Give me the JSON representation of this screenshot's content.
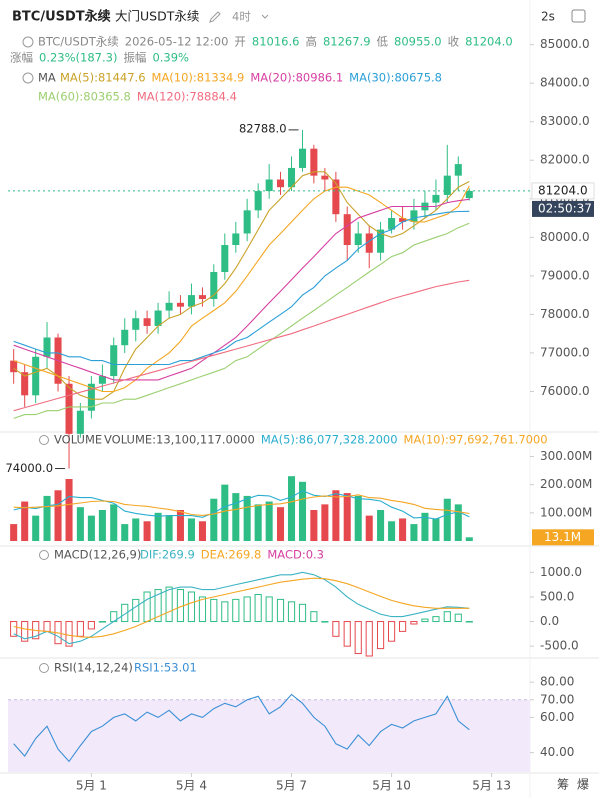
{
  "header": {
    "symbol": "BTC/USDT永续",
    "subtitle": "大门USDT永续",
    "interval": "4时",
    "refresh": "2s",
    "info_line1": [
      [
        "BTC/USDT永续",
        "2026-05-12 12:00"
      ],
      [
        "开",
        "81016.6"
      ],
      [
        "高",
        "81267.9"
      ],
      [
        "低",
        "80955.0"
      ],
      [
        "收",
        "81204.0"
      ]
    ],
    "info_line2": [
      [
        "涨幅",
        "0.23%(187.3)"
      ],
      [
        "振幅",
        "0.39%"
      ]
    ],
    "side_buttons": [
      "筹",
      "爆"
    ]
  },
  "chart_data": [
    {
      "type": "candlestick",
      "title": "MA",
      "up_color": "#2ebd85",
      "down_color": "#e5484d",
      "x": [
        -1.33,
        -1,
        -0.67,
        -0.33,
        0,
        0.33,
        0.67,
        1,
        1.33,
        1.67,
        2,
        2.33,
        2.67,
        3,
        3.33,
        3.67,
        4,
        4.33,
        4.67,
        5,
        5.33,
        5.67,
        6,
        6.33,
        6.67,
        7,
        7.33,
        7.67,
        8,
        8.33,
        8.67,
        9,
        9.33,
        9.67,
        10,
        10.33,
        10.67,
        11,
        11.33,
        11.67,
        12,
        12.33
      ],
      "open": [
        76800,
        76500,
        75900,
        76900,
        77400,
        76200,
        74900,
        75500,
        76200,
        76400,
        77200,
        77600,
        77900,
        77700,
        78100,
        78300,
        78200,
        78500,
        78400,
        79100,
        79800,
        80100,
        80700,
        81200,
        81500,
        81300,
        81800,
        82300,
        81600,
        81500,
        80600,
        79800,
        80100,
        79600,
        80200,
        80500,
        80400,
        80700,
        80900,
        81100,
        81600,
        81016.6
      ],
      "high": [
        77100,
        76700,
        77100,
        77800,
        77500,
        76400,
        75700,
        76400,
        76700,
        77400,
        77900,
        78100,
        78100,
        78300,
        78600,
        78500,
        78800,
        78700,
        79300,
        80100,
        80400,
        81000,
        81400,
        81900,
        81700,
        82100,
        82788,
        82400,
        81800,
        81700,
        80800,
        80400,
        80300,
        80400,
        80700,
        80800,
        81000,
        81200,
        81500,
        82400,
        82100,
        81267.9
      ],
      "low": [
        76200,
        75600,
        75700,
        76600,
        76000,
        74000,
        74800,
        75300,
        76000,
        76200,
        77000,
        77300,
        77500,
        77500,
        77900,
        78000,
        78000,
        78200,
        78200,
        78900,
        79600,
        79900,
        80500,
        81000,
        81100,
        81200,
        81700,
        81400,
        81200,
        80400,
        79400,
        79600,
        79200,
        79400,
        80100,
        80200,
        80200,
        80500,
        80700,
        80900,
        81200,
        80955.0
      ],
      "close": [
        76500,
        75900,
        76900,
        77400,
        76200,
        74900,
        75500,
        76200,
        76400,
        77200,
        77600,
        77900,
        77700,
        78100,
        78300,
        78200,
        78500,
        78400,
        79100,
        79800,
        80100,
        80700,
        81200,
        81500,
        81300,
        81800,
        82300,
        81600,
        81500,
        80600,
        79800,
        80100,
        79600,
        80200,
        80500,
        80400,
        80700,
        80900,
        81100,
        81600,
        81900,
        81204.0
      ],
      "series": [
        {
          "name": "MA(5):81447.6",
          "color": "#c9a227",
          "values": [
            76600,
            76400,
            76500,
            76600,
            76400,
            76100,
            75900,
            75800,
            75800,
            76000,
            76600,
            77100,
            77400,
            77700,
            77900,
            78000,
            78200,
            78300,
            78500,
            78800,
            79200,
            79700,
            80200,
            80700,
            81000,
            81300,
            81600,
            81700,
            81700,
            81400,
            80900,
            80600,
            80300,
            80100,
            80000,
            80100,
            80300,
            80500,
            80700,
            81000,
            81300,
            81447.6
          ]
        },
        {
          "name": "MA(10):81334.9",
          "color": "#f5a623",
          "values": [
            76800,
            76700,
            76600,
            76500,
            76400,
            76300,
            76200,
            76100,
            76000,
            76000,
            76100,
            76300,
            76600,
            76800,
            77000,
            77300,
            77700,
            77900,
            78100,
            78300,
            78600,
            79000,
            79400,
            79800,
            80100,
            80400,
            80700,
            81000,
            81200,
            81300,
            81300,
            81200,
            81100,
            80900,
            80700,
            80500,
            80400,
            80400,
            80500,
            80600,
            80800,
            81334.9
          ]
        },
        {
          "name": "MA(20):80986.1",
          "color": "#d63fa1",
          "values": [
            77200,
            77100,
            77000,
            76900,
            76800,
            76700,
            76600,
            76500,
            76400,
            76300,
            76300,
            76300,
            76300,
            76300,
            76400,
            76500,
            76600,
            76800,
            77000,
            77200,
            77400,
            77700,
            78000,
            78300,
            78600,
            78900,
            79200,
            79500,
            79800,
            80100,
            80300,
            80500,
            80600,
            80700,
            80800,
            80800,
            80800,
            80800,
            80800,
            80900,
            80950,
            80986.1
          ]
        },
        {
          "name": "MA(30):80675.8",
          "color": "#2a9fd6",
          "values": [
            77300,
            77200,
            77100,
            77000,
            77000,
            76900,
            76900,
            76800,
            76800,
            76700,
            76700,
            76700,
            76700,
            76700,
            76700,
            76800,
            76800,
            76900,
            77000,
            77100,
            77300,
            77400,
            77600,
            77800,
            78000,
            78200,
            78500,
            78700,
            79000,
            79200,
            79400,
            79700,
            79900,
            80100,
            80200,
            80400,
            80500,
            80550,
            80600,
            80650,
            80670,
            80675.8
          ]
        },
        {
          "name": "MA(60):80365.8",
          "color": "#9bcf70",
          "values": [
            75300,
            75400,
            75400,
            75500,
            75500,
            75600,
            75600,
            75600,
            75700,
            75700,
            75800,
            75800,
            75900,
            76000,
            76100,
            76200,
            76300,
            76400,
            76500,
            76600,
            76800,
            76900,
            77100,
            77300,
            77500,
            77700,
            77900,
            78100,
            78300,
            78500,
            78700,
            78900,
            79100,
            79300,
            79500,
            79600,
            79800,
            79900,
            80000,
            80100,
            80250,
            80365.8
          ]
        },
        {
          "name": "MA(120):78884.4",
          "color": "#f06c80",
          "values": [
            75500,
            75580,
            75660,
            75740,
            75820,
            75900,
            75980,
            76060,
            76140,
            76220,
            76300,
            76380,
            76460,
            76540,
            76620,
            76700,
            76780,
            76860,
            76940,
            77020,
            77100,
            77180,
            77260,
            77340,
            77420,
            77500,
            77600,
            77700,
            77800,
            77900,
            78000,
            78100,
            78200,
            78300,
            78400,
            78480,
            78560,
            78640,
            78720,
            78780,
            78840,
            78884.4
          ]
        }
      ],
      "xlim": [
        -1.5,
        14.15
      ],
      "ylim": [
        75000,
        85250
      ],
      "yticks": [
        {
          "value": 76000,
          "label": "76000.0"
        },
        {
          "value": 77000,
          "label": "77000.0"
        },
        {
          "value": 78000,
          "label": "78000.0"
        },
        {
          "value": 79000,
          "label": "79000.0"
        },
        {
          "value": 80000,
          "label": "80000.0"
        },
        {
          "value": 81000,
          "label": "81000.0"
        },
        {
          "value": 82000,
          "label": "82000.0"
        },
        {
          "value": 83000,
          "label": "83000.0"
        },
        {
          "value": 84000,
          "label": "84000.0"
        },
        {
          "value": 85000,
          "label": "85000.0"
        }
      ],
      "last_price": {
        "value": 81204.0,
        "label": "81204.0"
      },
      "countdown": "02:50:37",
      "annotations": [
        {
          "text": "82788.0",
          "x": 7.33,
          "y": 82788
        },
        {
          "text": "74000.0",
          "x": 0.33,
          "y": 74000
        }
      ]
    },
    {
      "type": "bar",
      "title": "VOLUME",
      "subtitle": "VOLUME:13,100,117.0000",
      "values": [
        60000000,
        140000000,
        90000000,
        160000000,
        180000000,
        220000000,
        120000000,
        90000000,
        110000000,
        130000000,
        60000000,
        80000000,
        70000000,
        100000000,
        90000000,
        110000000,
        80000000,
        70000000,
        150000000,
        200000000,
        170000000,
        160000000,
        130000000,
        140000000,
        120000000,
        230000000,
        210000000,
        110000000,
        130000000,
        180000000,
        170000000,
        160000000,
        90000000,
        110000000,
        70000000,
        80000000,
        60000000,
        100000000,
        80000000,
        150000000,
        130000000,
        13100117
      ],
      "series": [
        {
          "name": "MA(5):86,077,328.2000",
          "color": "#2aaed0",
          "values": [
            110000000,
            120000000,
            115000000,
            125000000,
            130000000,
            158000000,
            154000000,
            154000000,
            144000000,
            134000000,
            106000000,
            98000000,
            92000000,
            88000000,
            90000000,
            90000000,
            90000000,
            84000000,
            100000000,
            122000000,
            134000000,
            150000000,
            162000000,
            160000000,
            144000000,
            156000000,
            178000000,
            162000000,
            158000000,
            168000000,
            160000000,
            150000000,
            148000000,
            142000000,
            120000000,
            106000000,
            82000000,
            84000000,
            78000000,
            94000000,
            104000000,
            86077328.2
          ]
        },
        {
          "name": "MA(10):97,692,761.7000",
          "color": "#f5a623",
          "values": [
            120000000,
            118000000,
            120000000,
            122000000,
            125000000,
            130000000,
            135000000,
            140000000,
            142000000,
            140000000,
            130000000,
            126000000,
            123000000,
            117000000,
            112000000,
            104000000,
            94000000,
            91000000,
            96000000,
            106000000,
            112000000,
            120000000,
            126000000,
            130000000,
            132000000,
            139000000,
            149000000,
            156000000,
            160000000,
            156000000,
            158000000,
            164000000,
            154000000,
            152000000,
            144000000,
            138000000,
            130000000,
            116000000,
            112000000,
            109000000,
            104000000,
            97692761.7
          ]
        }
      ],
      "ylim": [
        0,
        330000000
      ],
      "yticks": [
        {
          "value": 100000000,
          "label": "100.00M"
        },
        {
          "value": 200000000,
          "label": "200.00M"
        },
        {
          "value": 300000000,
          "label": "300.00M"
        }
      ],
      "last_label": "13.1M"
    },
    {
      "type": "macd",
      "title": "MACD(12,26,9)",
      "histogram": {
        "name": "MACD:0.3",
        "values": [
          -300,
          -400,
          -350,
          -200,
          -450,
          -500,
          -300,
          -150,
          0,
          200,
          350,
          450,
          600,
          650,
          700,
          650,
          600,
          500,
          450,
          400,
          450,
          500,
          550,
          500,
          450,
          400,
          350,
          200,
          0,
          -300,
          -500,
          -650,
          -700,
          -550,
          -400,
          -200,
          -50,
          50,
          100,
          200,
          150,
          0.3
        ]
      },
      "series": [
        {
          "name": "DIF:269.9",
          "color": "#3bb3c3",
          "values": [
            -250,
            -350,
            -300,
            -200,
            -300,
            -450,
            -400,
            -300,
            -150,
            0,
            150,
            300,
            450,
            550,
            650,
            700,
            700,
            650,
            650,
            700,
            750,
            800,
            850,
            900,
            950,
            950,
            1000,
            950,
            850,
            700,
            500,
            350,
            250,
            150,
            100,
            100,
            150,
            200,
            250,
            300,
            290,
            269.9
          ]
        },
        {
          "name": "DEA:269.8",
          "color": "#f5a623",
          "values": [
            -100,
            -150,
            -180,
            -200,
            -230,
            -280,
            -310,
            -320,
            -300,
            -250,
            -180,
            -100,
            0,
            100,
            200,
            300,
            380,
            450,
            500,
            550,
            600,
            650,
            700,
            750,
            800,
            830,
            860,
            880,
            870,
            830,
            770,
            690,
            600,
            510,
            430,
            370,
            320,
            290,
            270,
            270,
            270,
            269.8
          ]
        }
      ],
      "ylim": [
        -680,
        1210
      ],
      "yticks": [
        {
          "value": -500,
          "label": "-500.0"
        },
        {
          "value": 0,
          "label": "0.0"
        },
        {
          "value": 500,
          "label": "500.0"
        },
        {
          "value": 1000,
          "label": "1000.0"
        }
      ]
    },
    {
      "type": "line",
      "title": "RSI(14,12,24)",
      "band_top": 70,
      "series": [
        {
          "name": "RSI1:53.01",
          "color": "#3b8fd6",
          "values": [
            45,
            38,
            48,
            55,
            42,
            35,
            44,
            52,
            55,
            60,
            62,
            58,
            63,
            60,
            64,
            58,
            62,
            60,
            65,
            68,
            66,
            70,
            72,
            62,
            66,
            73,
            68,
            60,
            55,
            45,
            42,
            50,
            44,
            52,
            56,
            54,
            58,
            60,
            62,
            72,
            58,
            53.01
          ]
        }
      ],
      "ylim": [
        29,
        83.5
      ],
      "yticks": [
        {
          "value": 40,
          "label": "40.00"
        },
        {
          "value": 60,
          "label": "60.00"
        },
        {
          "value": 70,
          "label": "70.00"
        },
        {
          "value": 80,
          "label": "80.00"
        }
      ],
      "xticks": [
        {
          "value": 1,
          "label": "5月 1"
        },
        {
          "value": 4,
          "label": "5月 4"
        },
        {
          "value": 7,
          "label": "5月 7"
        },
        {
          "value": 10,
          "label": "5月 10"
        },
        {
          "value": 13,
          "label": "5月 13"
        }
      ]
    }
  ]
}
